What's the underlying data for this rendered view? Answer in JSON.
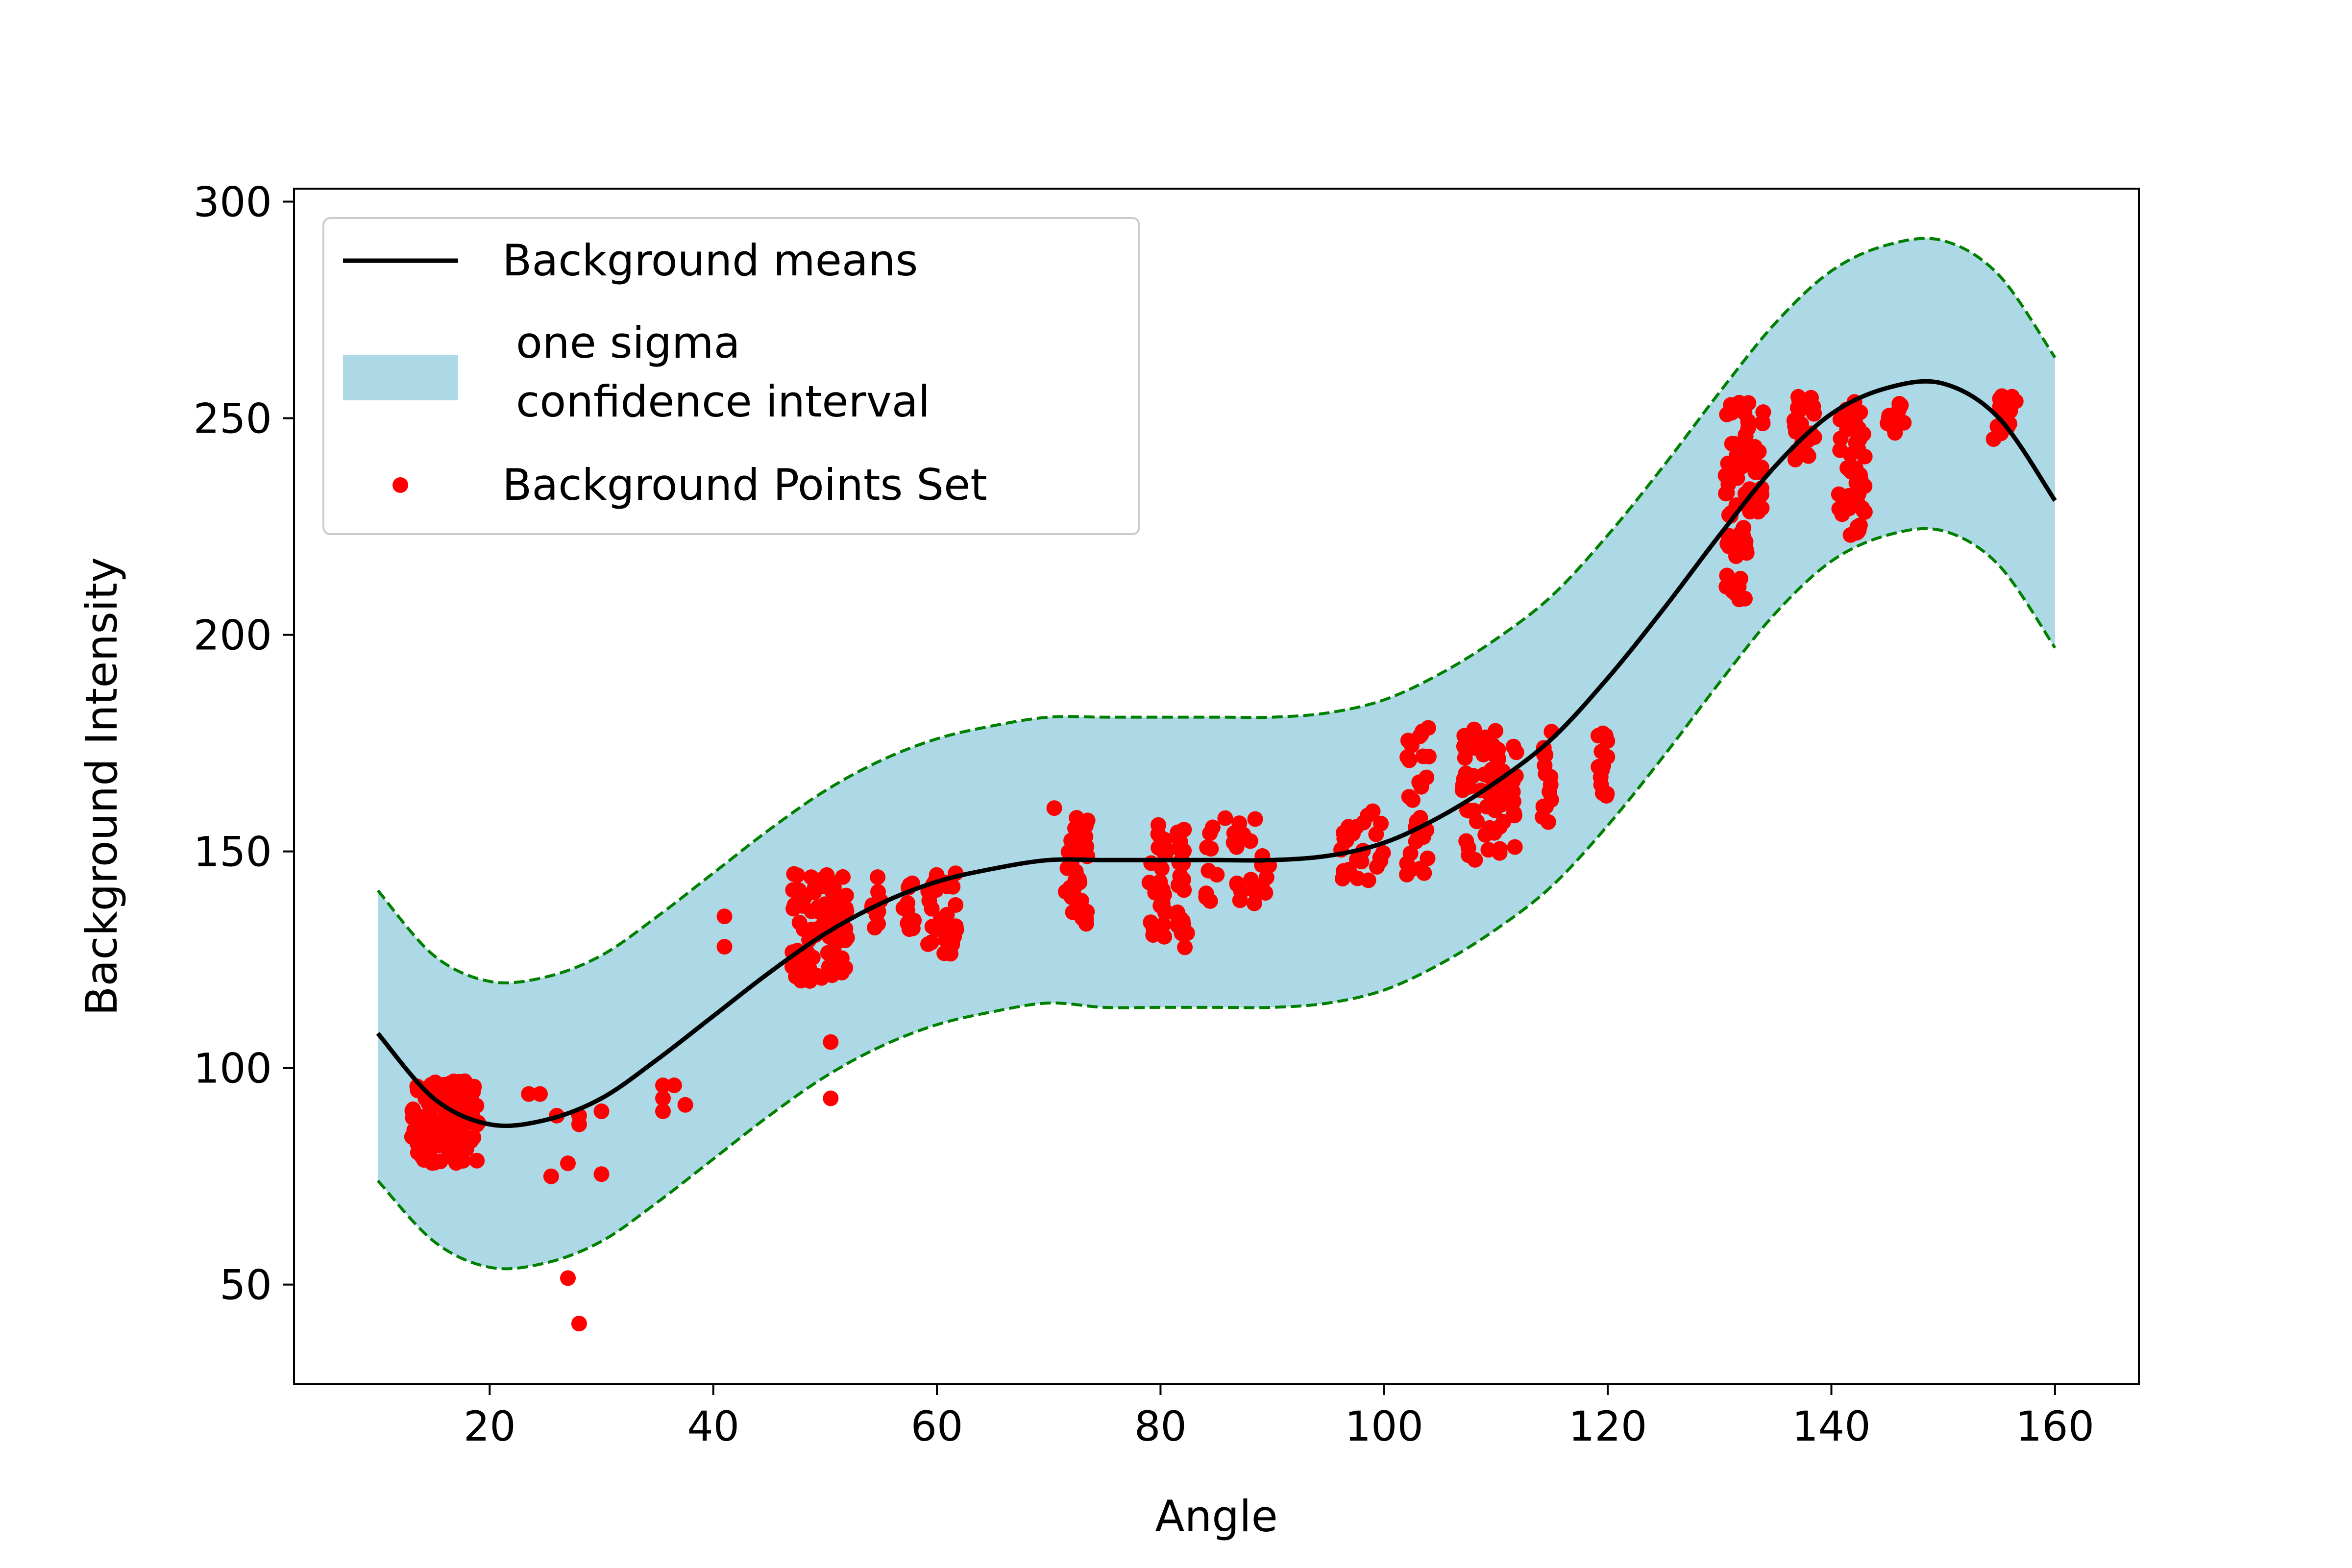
{
  "chart_data": {
    "type": "line",
    "title": "",
    "xlabel": "Angle",
    "ylabel": "Background Intensity",
    "xlim": [
      2.5,
      167.5
    ],
    "ylim": [
      27,
      303
    ],
    "xticks": [
      20,
      40,
      60,
      80,
      100,
      120,
      140,
      160
    ],
    "yticks": [
      50,
      100,
      150,
      200,
      250,
      300
    ],
    "grid": false,
    "legend_position": "upper-left",
    "colors": {
      "mean": "#000000",
      "band_fill": "#add8e6",
      "band_edge": "#008000",
      "points": "#ff0000"
    },
    "legend": [
      {
        "key": "mean",
        "label": "Background means"
      },
      {
        "key": "band",
        "label_lines": [
          " one sigma",
          " confidence interval"
        ]
      },
      {
        "key": "points",
        "label": "Background Points Set"
      }
    ],
    "mean_curve": {
      "name": "Background means",
      "x": [
        10,
        15,
        20,
        25,
        30,
        35,
        40,
        45,
        50,
        55,
        60,
        65,
        70,
        75,
        80,
        85,
        90,
        95,
        100,
        105,
        110,
        115,
        120,
        125,
        130,
        135,
        140,
        145,
        150,
        155,
        160
      ],
      "y": [
        108,
        93,
        87,
        88,
        93,
        102,
        112,
        122,
        131,
        138,
        143,
        146,
        148,
        148,
        148,
        148,
        148,
        149,
        152,
        158,
        166,
        176,
        190,
        206,
        223,
        239,
        251,
        257,
        258,
        250,
        231
      ]
    },
    "band": {
      "name": "one sigma confidence interval",
      "x": [
        10,
        15,
        20,
        25,
        30,
        35,
        40,
        45,
        50,
        55,
        60,
        65,
        70,
        75,
        80,
        85,
        90,
        95,
        100,
        105,
        110,
        115,
        120,
        125,
        130,
        135,
        140,
        145,
        150,
        155,
        160
      ],
      "upper": [
        141,
        126,
        120,
        121,
        126,
        135,
        145,
        155,
        164,
        171,
        176,
        179,
        181,
        181,
        181,
        181,
        181,
        182,
        185,
        191,
        199,
        209,
        223,
        239,
        256,
        272,
        284,
        290,
        291,
        283,
        264
      ],
      "lower": [
        74,
        60,
        54,
        55,
        60,
        69,
        79,
        89,
        98,
        105,
        110,
        113,
        115,
        114,
        114,
        114,
        114,
        115,
        118,
        124,
        132,
        142,
        156,
        172,
        189,
        205,
        217,
        223,
        224,
        216,
        197
      ]
    },
    "points": {
      "name": "Background Points Set",
      "clusters": [
        {
          "x": [
            13,
            19
          ],
          "y": [
            78,
            97
          ],
          "n": 140
        },
        {
          "x": [
            47,
            52
          ],
          "y": [
            120,
            145
          ],
          "n": 90
        },
        {
          "x": [
            54,
            55
          ],
          "y": [
            132,
            145
          ],
          "n": 10
        },
        {
          "x": [
            57,
            58
          ],
          "y": [
            132,
            145
          ],
          "n": 12
        },
        {
          "x": [
            59,
            62
          ],
          "y": [
            126,
            145
          ],
          "n": 30
        },
        {
          "x": [
            71.5,
            73.5
          ],
          "y": [
            133,
            158
          ],
          "n": 40
        },
        {
          "x": [
            79,
            80.5
          ],
          "y": [
            130,
            157
          ],
          "n": 30
        },
        {
          "x": [
            81.5,
            82.5
          ],
          "y": [
            126,
            157
          ],
          "n": 25
        },
        {
          "x": [
            84,
            90
          ],
          "y": [
            138,
            160
          ],
          "n": 30
        },
        {
          "x": [
            95.5,
            100
          ],
          "y": [
            143,
            160
          ],
          "n": 25
        },
        {
          "x": [
            102,
            104
          ],
          "y": [
            143,
            180
          ],
          "n": 30
        },
        {
          "x": [
            107,
            112
          ],
          "y": [
            148,
            179
          ],
          "n": 70
        },
        {
          "x": [
            114,
            115
          ],
          "y": [
            155,
            179
          ],
          "n": 15
        },
        {
          "x": [
            119,
            120
          ],
          "y": [
            162,
            179
          ],
          "n": 15
        },
        {
          "x": [
            130.5,
            132.5
          ],
          "y": [
            208,
            255
          ],
          "n": 50
        },
        {
          "x": [
            132.5,
            134
          ],
          "y": [
            228,
            255
          ],
          "n": 30
        },
        {
          "x": [
            136.5,
            138.5
          ],
          "y": [
            240,
            255
          ],
          "n": 25
        },
        {
          "x": [
            140.5,
            143
          ],
          "y": [
            223,
            255
          ],
          "n": 45
        },
        {
          "x": [
            145,
            146.5
          ],
          "y": [
            246,
            255
          ],
          "n": 10
        },
        {
          "x": [
            154.5,
            156.5
          ],
          "y": [
            245,
            256
          ],
          "n": 20
        }
      ],
      "extras": [
        {
          "x": 70.5,
          "y": 160
        },
        {
          "x": 41,
          "y": 135
        },
        {
          "x": 41,
          "y": 128
        },
        {
          "x": 50.5,
          "y": 106
        },
        {
          "x": 50.5,
          "y": 93
        },
        {
          "x": 23.5,
          "y": 94
        },
        {
          "x": 24.5,
          "y": 94
        },
        {
          "x": 26,
          "y": 89
        },
        {
          "x": 28,
          "y": 89
        },
        {
          "x": 28,
          "y": 87
        },
        {
          "x": 30,
          "y": 90
        },
        {
          "x": 27,
          "y": 78
        },
        {
          "x": 25.5,
          "y": 75
        },
        {
          "x": 30,
          "y": 75.5
        },
        {
          "x": 27,
          "y": 51.5
        },
        {
          "x": 28,
          "y": 41
        },
        {
          "x": 35.5,
          "y": 96
        },
        {
          "x": 36.5,
          "y": 96
        },
        {
          "x": 35.5,
          "y": 93
        },
        {
          "x": 35.5,
          "y": 90
        },
        {
          "x": 37.5,
          "y": 91.5
        }
      ]
    }
  }
}
